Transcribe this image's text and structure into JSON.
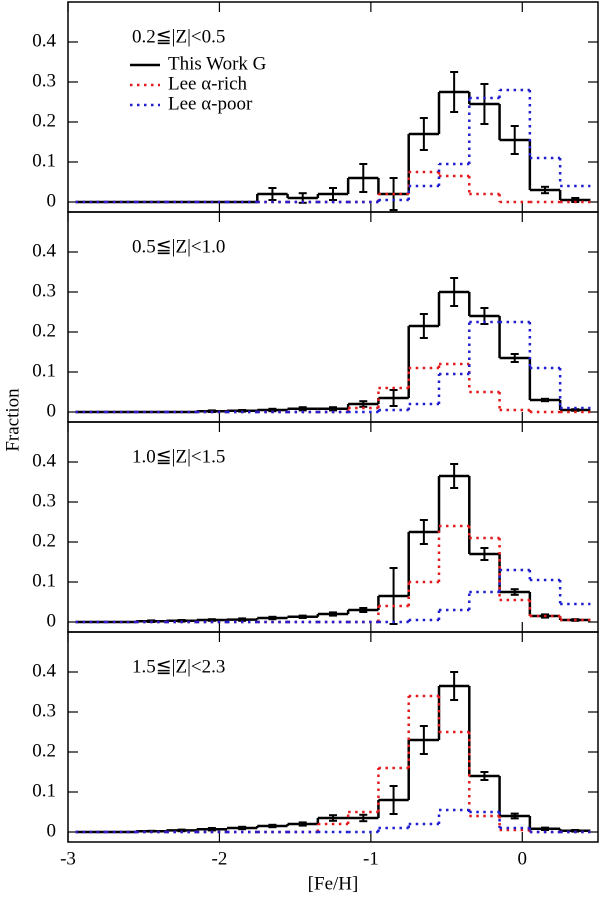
{
  "xlabel": "[Fe/H]",
  "ylabel": "Fraction",
  "chart_data": [
    {
      "type": "histogram",
      "title": "0.2≦|Z|<0.5",
      "bins": [
        -2.95,
        -2.75,
        -2.55,
        -2.35,
        -2.15,
        -1.95,
        -1.75,
        -1.55,
        -1.35,
        -1.15,
        -0.95,
        -0.75,
        -0.55,
        -0.35,
        -0.15,
        0.05,
        0.25,
        0.45
      ],
      "xlim": [
        -3,
        0.5
      ],
      "xticks": [
        -3,
        -2,
        -1,
        0
      ],
      "ylim": [
        -0.025,
        0.5
      ],
      "yticks": [
        0,
        0.1,
        0.2,
        0.3,
        0.4
      ],
      "series": [
        {
          "name": "This Work G",
          "color": "#000000",
          "style": "solid",
          "values": [
            0,
            0,
            0,
            0,
            0,
            0,
            0.02,
            0.01,
            0.02,
            0.06,
            0.02,
            0.17,
            0.275,
            0.245,
            0.155,
            0.03,
            0.005
          ],
          "errors": [
            null,
            null,
            null,
            null,
            null,
            null,
            0.015,
            0.012,
            0.015,
            0.035,
            0.04,
            0.04,
            0.05,
            0.05,
            0.035,
            0.008,
            0.005
          ]
        },
        {
          "name": "Lee α-rich",
          "color": "#e41a1c",
          "style": "dotted",
          "values": [
            0,
            0,
            0,
            0,
            0,
            0,
            0,
            0,
            0,
            0,
            0.02,
            0.075,
            0.065,
            0.02,
            0,
            0,
            0
          ]
        },
        {
          "name": "Lee α-poor",
          "color": "#1f1fd0",
          "style": "dotted",
          "values": [
            0,
            0,
            0,
            0,
            0,
            0,
            0,
            0,
            0,
            0,
            0.005,
            0.04,
            0.095,
            0.26,
            0.28,
            0.11,
            0.04
          ]
        }
      ]
    },
    {
      "type": "histogram",
      "title": "0.5≦|Z|<1.0",
      "bins": [
        -2.95,
        -2.75,
        -2.55,
        -2.35,
        -2.15,
        -1.95,
        -1.75,
        -1.55,
        -1.35,
        -1.15,
        -0.95,
        -0.75,
        -0.55,
        -0.35,
        -0.15,
        0.05,
        0.25,
        0.45
      ],
      "xlim": [
        -3,
        0.5
      ],
      "xticks": [
        -3,
        -2,
        -1,
        0
      ],
      "ylim": [
        -0.025,
        0.5
      ],
      "yticks": [
        0,
        0.1,
        0.2,
        0.3,
        0.4
      ],
      "series": [
        {
          "color": "#000000",
          "style": "solid",
          "values": [
            0,
            0,
            0,
            0,
            0.002,
            0.003,
            0.005,
            0.008,
            0.008,
            0.02,
            0.035,
            0.215,
            0.3,
            0.24,
            0.135,
            0.03,
            0.005
          ],
          "errors": [
            null,
            null,
            null,
            null,
            0.002,
            0.002,
            0.003,
            0.004,
            0.004,
            0.007,
            0.02,
            0.03,
            0.035,
            0.02,
            0.01,
            0.003,
            0.002
          ]
        },
        {
          "color": "#e41a1c",
          "style": "dotted",
          "values": [
            0,
            0,
            0,
            0,
            0,
            0,
            0,
            0,
            0,
            0.01,
            0.06,
            0.11,
            0.12,
            0.05,
            0.005,
            0,
            0
          ]
        },
        {
          "color": "#1f1fd0",
          "style": "dotted",
          "values": [
            0,
            0,
            0,
            0,
            0,
            0,
            0,
            0,
            0,
            0,
            0.005,
            0.02,
            0.095,
            0.225,
            0.225,
            0.11,
            0.01
          ]
        }
      ]
    },
    {
      "type": "histogram",
      "title": "1.0≦|Z|<1.5",
      "bins": [
        -2.95,
        -2.75,
        -2.55,
        -2.35,
        -2.15,
        -1.95,
        -1.75,
        -1.55,
        -1.35,
        -1.15,
        -0.95,
        -0.75,
        -0.55,
        -0.35,
        -0.15,
        0.05,
        0.25,
        0.45
      ],
      "xlim": [
        -3,
        0.5
      ],
      "xticks": [
        -3,
        -2,
        -1,
        0
      ],
      "ylim": [
        -0.025,
        0.5
      ],
      "yticks": [
        0,
        0.1,
        0.2,
        0.3,
        0.4
      ],
      "series": [
        {
          "color": "#000000",
          "style": "solid",
          "values": [
            0,
            0,
            0.002,
            0.003,
            0.005,
            0.006,
            0.01,
            0.013,
            0.02,
            0.03,
            0.065,
            0.225,
            0.365,
            0.17,
            0.075,
            0.015,
            0.005
          ],
          "errors": [
            null,
            null,
            0.002,
            0.002,
            0.002,
            0.003,
            0.003,
            0.003,
            0.004,
            0.005,
            0.07,
            0.03,
            0.03,
            0.015,
            0.007,
            0.004,
            0.002
          ]
        },
        {
          "color": "#e41a1c",
          "style": "dotted",
          "values": [
            0,
            0,
            0,
            0,
            0,
            0,
            0,
            0,
            0,
            0,
            0.04,
            0.1,
            0.24,
            0.21,
            0.055,
            0.015,
            0.005
          ]
        },
        {
          "color": "#1f1fd0",
          "style": "dotted",
          "values": [
            0,
            0,
            0,
            0,
            0,
            0,
            0,
            0,
            0,
            0,
            0,
            0.005,
            0.03,
            0.075,
            0.13,
            0.105,
            0.045
          ]
        }
      ]
    },
    {
      "type": "histogram",
      "title": "1.5≦|Z|<2.3",
      "bins": [
        -2.95,
        -2.75,
        -2.55,
        -2.35,
        -2.15,
        -1.95,
        -1.75,
        -1.55,
        -1.35,
        -1.15,
        -0.95,
        -0.75,
        -0.55,
        -0.35,
        -0.15,
        0.05,
        0.25,
        0.45
      ],
      "xlim": [
        -3,
        0.5
      ],
      "xticks": [
        -3,
        -2,
        -1,
        0
      ],
      "xticklabels": true,
      "ylim": [
        -0.025,
        0.5
      ],
      "yticks": [
        0,
        0.1,
        0.2,
        0.3,
        0.4
      ],
      "series": [
        {
          "color": "#000000",
          "style": "solid",
          "values": [
            0,
            0,
            0.002,
            0.004,
            0.007,
            0.01,
            0.015,
            0.02,
            0.035,
            0.035,
            0.08,
            0.23,
            0.365,
            0.14,
            0.04,
            0.008,
            0.003
          ],
          "errors": [
            null,
            null,
            0.001,
            0.002,
            0.003,
            0.003,
            0.003,
            0.004,
            0.007,
            0.008,
            0.035,
            0.035,
            0.035,
            0.01,
            0.006,
            0.003,
            0.002
          ]
        },
        {
          "color": "#e41a1c",
          "style": "dotted",
          "values": [
            0,
            0,
            0,
            0,
            0,
            0,
            0,
            0,
            0.02,
            0.05,
            0.16,
            0.34,
            0.25,
            0.04,
            0.005,
            0,
            0
          ]
        },
        {
          "color": "#1f1fd0",
          "style": "dotted",
          "values": [
            0,
            0,
            0,
            0,
            0,
            0,
            0,
            0,
            0,
            0,
            0.01,
            0.02,
            0.055,
            0.05,
            0.01,
            0,
            0
          ]
        }
      ]
    }
  ]
}
